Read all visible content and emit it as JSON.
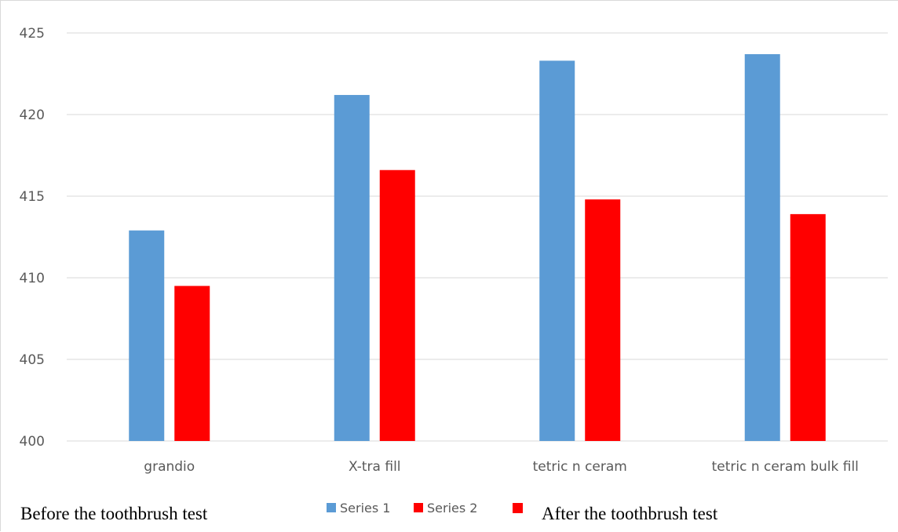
{
  "colors": {
    "series1": "#5b9bd5",
    "series2": "#ff0000",
    "grid": "#d9d9d9",
    "text": "#595959"
  },
  "chart_data": {
    "type": "bar",
    "categories": [
      "grandio",
      "X-tra fill",
      "tetric n ceram",
      "tetric n ceram bulk fill"
    ],
    "series": [
      {
        "name": "Series 1",
        "values": [
          412.9,
          421.2,
          423.3,
          423.7
        ]
      },
      {
        "name": "Series 2",
        "values": [
          409.5,
          416.6,
          414.8,
          413.9
        ]
      }
    ],
    "ylim": [
      400,
      425
    ],
    "yticks": [
      400,
      405,
      410,
      415,
      420,
      425
    ],
    "grid": true,
    "legend_position": "bottom",
    "legend_annotations": [
      "Before the toothbrush test",
      "After the toothbrush test"
    ]
  }
}
